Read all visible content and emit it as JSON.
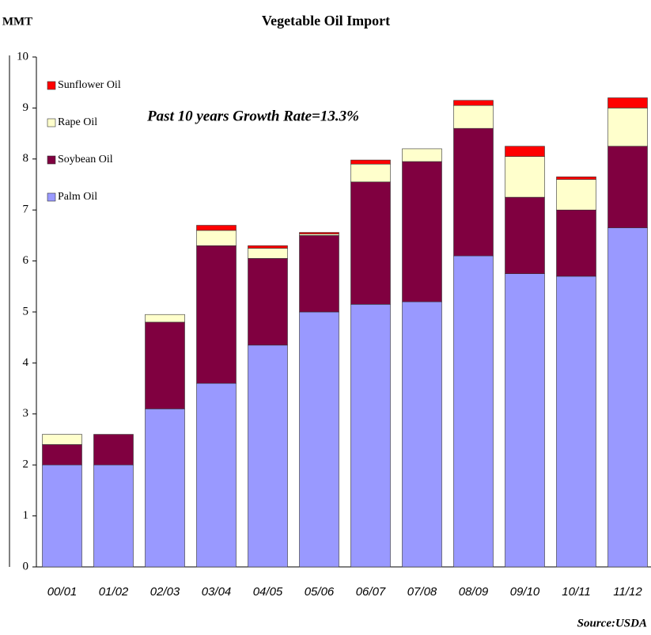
{
  "chart_data": {
    "type": "stacked_bar",
    "title": "Vegetable Oil Import",
    "ylabel": "MMT",
    "annotation": "Past 10 years Growth Rate=13.3%",
    "source": "Source:USDA",
    "categories": [
      "00/01",
      "01/02",
      "02/03",
      "03/04",
      "04/05",
      "05/06",
      "06/07",
      "07/08",
      "08/09",
      "09/10",
      "10/11",
      "11/12"
    ],
    "series": [
      {
        "name": "Palm Oil",
        "color": "#9999ff",
        "values": [
          2.0,
          2.0,
          3.1,
          3.6,
          4.35,
          5.0,
          5.15,
          5.2,
          6.1,
          5.75,
          5.7,
          6.65
        ]
      },
      {
        "name": "Soybean Oil",
        "color": "#800040",
        "values": [
          0.4,
          0.6,
          1.7,
          2.7,
          1.7,
          1.5,
          2.4,
          2.75,
          2.5,
          1.5,
          1.3,
          1.6
        ]
      },
      {
        "name": "Rape Oil",
        "color": "#ffffcc",
        "values": [
          0.2,
          0,
          0.15,
          0.3,
          0.2,
          0.03,
          0.35,
          0.25,
          0.45,
          0.8,
          0.6,
          0.75
        ]
      },
      {
        "name": "Sunflower Oil",
        "color": "#ff0000",
        "values": [
          0,
          0,
          0,
          0.1,
          0.05,
          0.03,
          0.08,
          0,
          0.1,
          0.2,
          0.05,
          0.2
        ]
      }
    ],
    "ylim": [
      0,
      10
    ],
    "yticks": [
      0,
      1,
      2,
      3,
      4,
      5,
      6,
      7,
      8,
      9,
      10
    ],
    "legend": "upper left"
  }
}
